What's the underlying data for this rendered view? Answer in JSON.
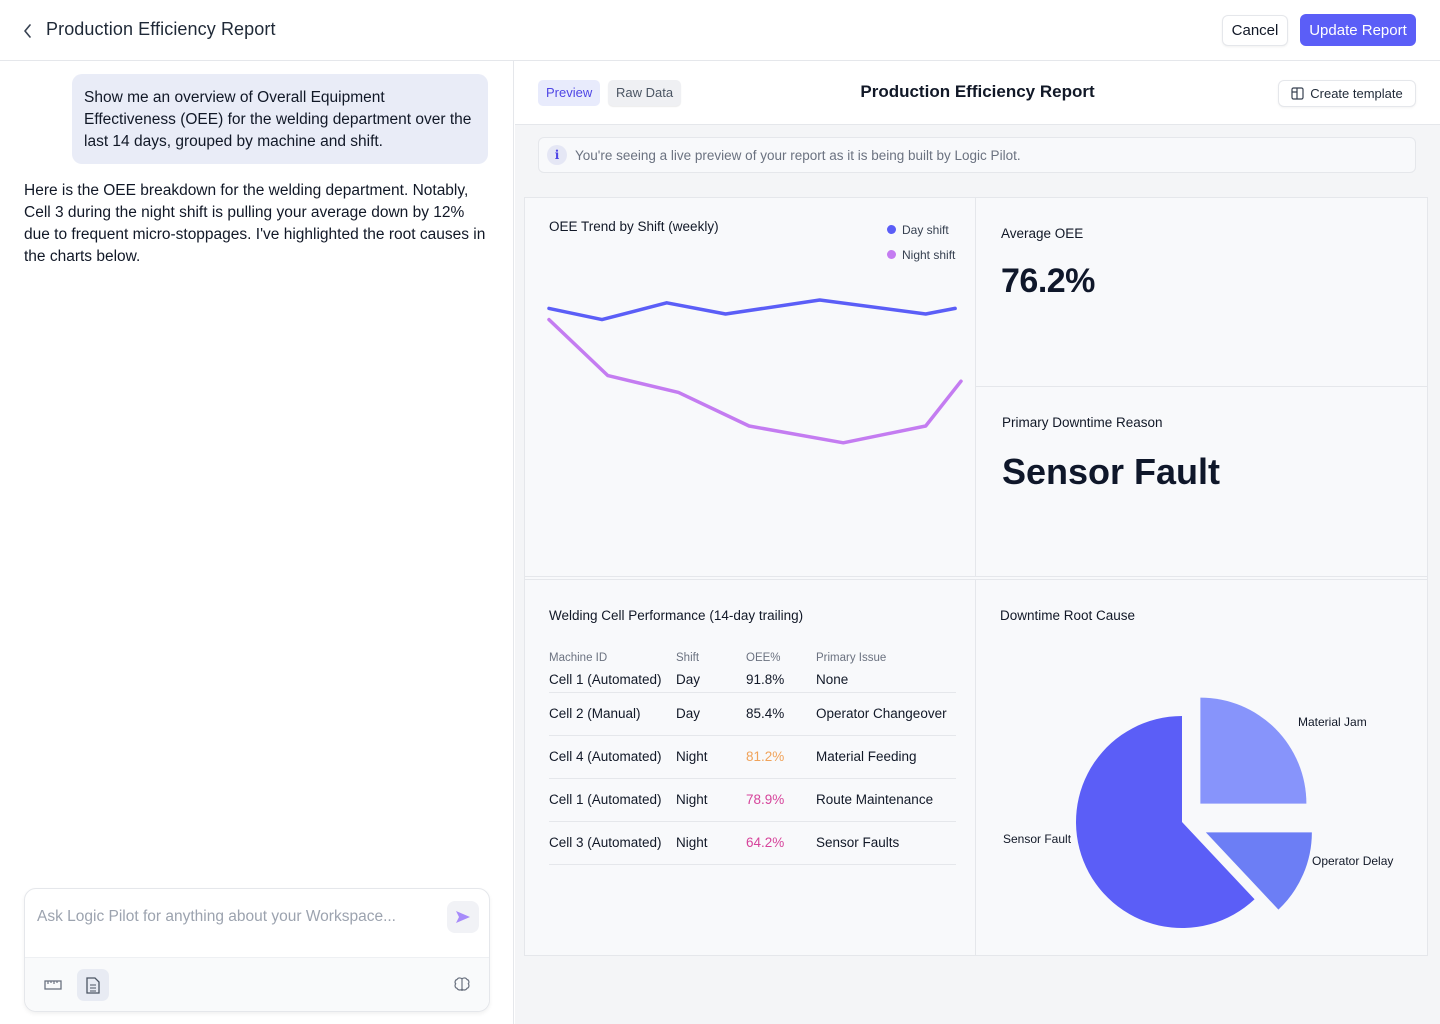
{
  "header": {
    "title": "Production Efficiency Report",
    "cancel_label": "Cancel",
    "update_label": "Update Report"
  },
  "chat": {
    "user_message": "Show me an overview of Overall Equipment Effectiveness (OEE) for the welding department over the last 14 days, grouped by machine and shift.",
    "assistant_message": "Here is the OEE breakdown for the welding department. Notably, Cell 3 during the night shift is pulling your average down by 12% due to frequent micro-stoppages. I've highlighted the root causes in the charts below.",
    "input_value": "",
    "input_placeholder": "Ask Logic Pilot for anything about your Workspace..."
  },
  "report": {
    "tabs": {
      "preview": "Preview",
      "raw": "Raw Data"
    },
    "title": "Production Efficiency Report",
    "template_label": "Create template",
    "info_text": "You're seeing a live preview of your report as it is being built by Logic Pilot.",
    "avg_card": {
      "title": "Average OEE",
      "value": "76.2%"
    },
    "downtime_card": {
      "title": "Primary Downtime Reason",
      "value": "Sensor Fault"
    },
    "table": {
      "title": "Welding Cell Performance (14-day trailing)",
      "headers": [
        "Machine ID",
        "Shift",
        "OEE%",
        "Primary Issue"
      ],
      "rows": [
        [
          "Cell 1 (Automated)",
          "Day",
          "91.8%",
          "None"
        ],
        [
          "Cell 2 (Manual)",
          "Day",
          "85.4%",
          "Operator Changeover"
        ],
        [
          "Cell 4 (Automated)",
          "Night",
          "81.2%",
          "Material Feeding"
        ],
        [
          "Cell 1 (Automated)",
          "Night",
          "78.9%",
          "Route Maintenance"
        ],
        [
          "Cell 3 (Automated)",
          "Night",
          "64.2%",
          "Sensor Faults"
        ]
      ]
    }
  },
  "colors": {
    "accent": "#5b5ef7",
    "day_line": "#5b5ef7",
    "night_line": "#c47cf1",
    "warn": "#f0a35a",
    "bad": "#d6449b",
    "pie_sensor": "#5b5ef7",
    "pie_material": "#8794fb",
    "pie_operator": "#6c7ef5"
  },
  "chart_data": [
    {
      "type": "line",
      "title": "OEE Trend by Shift (weekly)",
      "x": [
        1,
        2,
        3,
        4,
        5,
        6,
        7,
        8
      ],
      "ylim": [
        0,
        100
      ],
      "legend": "top-right",
      "series": [
        {
          "name": "Day shift",
          "color": "#5b5ef7",
          "x": [
            1,
            1.9,
            3,
            4,
            5.6,
            7.4,
            7.9
          ],
          "values": [
            82,
            78,
            84,
            80,
            85,
            80,
            82
          ]
        },
        {
          "name": "Night shift",
          "color": "#c47cf1",
          "x": [
            1,
            2,
            3.2,
            4.4,
            6,
            7.4,
            8
          ],
          "values": [
            78,
            58,
            52,
            40,
            34,
            40,
            56
          ]
        }
      ],
      "x_min": 1,
      "x_max": 7.9
    },
    {
      "type": "pie",
      "title": "Downtime Root Cause",
      "categories": [
        "Sensor Fault",
        "Material Jam",
        "Operator Delay"
      ],
      "values": [
        62,
        25,
        13
      ],
      "exploded": true
    }
  ]
}
